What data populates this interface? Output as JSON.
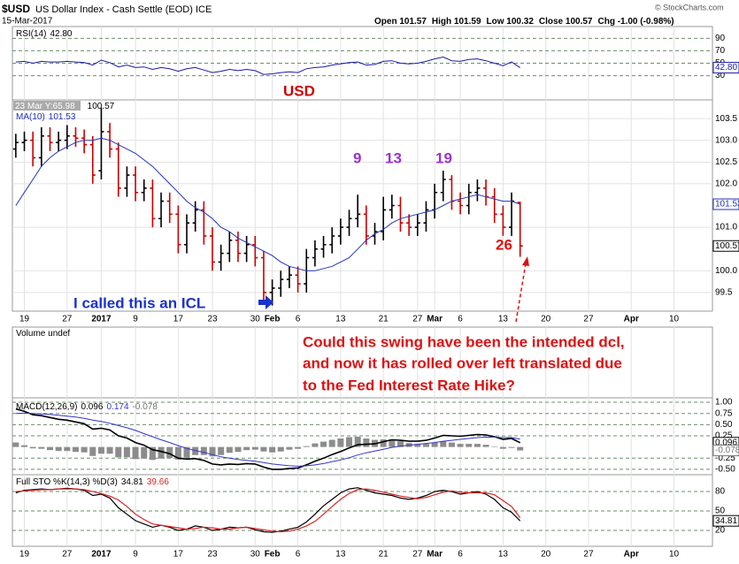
{
  "header": {
    "symbol": "$USD",
    "name": "US Dollar Index - Cash Settle (EOD) ICE",
    "date": "15-Mar-2017",
    "quote": [
      "Open 101.57",
      "High 101.59",
      "Low 100.32",
      "Close 100.57",
      "Chg -1.00 (-0.98%)"
    ],
    "source": "© StockCharts.com"
  },
  "chart_data": [
    {
      "type": "line",
      "title": "RSI(14)",
      "series": [
        {
          "color": "#1a1aa6",
          "values": [
            52,
            53,
            50,
            53,
            52,
            52,
            53,
            52,
            51,
            47,
            55,
            51,
            44,
            47,
            43,
            44,
            40,
            43,
            41,
            37,
            41,
            43,
            39,
            35,
            37,
            40,
            38,
            40,
            38,
            32,
            33,
            35,
            36,
            35,
            41,
            43,
            44,
            47,
            49,
            51,
            52,
            47,
            48,
            53,
            54,
            50,
            49,
            50,
            53,
            57,
            60,
            54,
            53,
            56,
            57,
            54,
            50,
            46,
            52,
            42.8
          ],
          "value_labels": [
            null,
            null,
            null,
            null,
            null,
            null,
            null,
            null,
            null,
            null,
            null,
            null,
            null,
            null,
            null,
            null,
            null,
            null,
            null,
            null,
            null,
            null,
            null,
            null,
            null,
            null,
            null,
            null,
            null,
            null,
            null,
            null,
            null,
            null,
            null,
            null,
            null,
            null,
            null,
            null,
            null,
            null,
            null,
            null,
            null,
            null,
            null,
            null,
            null,
            null,
            null,
            null,
            null,
            null,
            null,
            null,
            null,
            null,
            null,
            "42.80"
          ]
        }
      ],
      "ylim": [
        -9,
        109
      ],
      "yticks": [
        90,
        70,
        50,
        30
      ]
    },
    {
      "type": "ohlc",
      "annotations": [
        "USD",
        "9",
        "13",
        "19",
        "26",
        "I called this an ICL"
      ],
      "tooltip": "23 Mar Y:65.98",
      "up_color": "#000000",
      "down_color": "#cc0000",
      "open": [
        102.8,
        102.95,
        103.0,
        102.6,
        103.1,
        102.95,
        103.0,
        103.1,
        103.05,
        102.9,
        102.3,
        103.2,
        102.8,
        101.9,
        102.2,
        101.8,
        101.9,
        101.2,
        101.6,
        101.3,
        100.6,
        101.1,
        101.4,
        100.8,
        100.2,
        100.4,
        100.7,
        100.4,
        100.6,
        100.3,
        99.5,
        99.6,
        99.8,
        99.9,
        99.7,
        100.3,
        100.5,
        100.6,
        100.8,
        101.0,
        101.2,
        101.3,
        100.8,
        100.9,
        101.4,
        101.5,
        101.1,
        101.0,
        101.1,
        101.4,
        101.8,
        102.1,
        101.6,
        101.5,
        101.8,
        101.9,
        101.7,
        101.3,
        101.0,
        101.57
      ],
      "high": [
        103.15,
        103.2,
        103.2,
        103.3,
        103.3,
        103.2,
        103.35,
        103.3,
        103.25,
        103.1,
        103.75,
        103.4,
        102.95,
        102.4,
        102.4,
        102.1,
        102.1,
        101.8,
        101.8,
        101.5,
        101.3,
        101.6,
        101.6,
        101.0,
        100.6,
        100.9,
        100.9,
        100.8,
        100.8,
        100.45,
        99.8,
        100.0,
        100.1,
        100.1,
        100.5,
        100.7,
        100.8,
        101.0,
        101.2,
        101.4,
        101.75,
        101.5,
        101.1,
        101.7,
        101.75,
        101.7,
        101.3,
        101.3,
        101.6,
        102.0,
        102.3,
        102.2,
        101.8,
        102.0,
        102.1,
        102.1,
        101.9,
        101.5,
        101.8,
        101.59
      ],
      "low": [
        102.6,
        102.75,
        102.4,
        102.4,
        102.75,
        102.75,
        102.8,
        102.85,
        102.7,
        102.0,
        102.1,
        102.6,
        101.7,
        101.7,
        101.6,
        101.6,
        101.0,
        101.0,
        101.1,
        100.4,
        100.4,
        100.9,
        100.6,
        100.0,
        100.0,
        100.2,
        100.2,
        100.2,
        100.1,
        99.3,
        99.2,
        99.4,
        99.6,
        99.5,
        99.5,
        100.1,
        100.3,
        100.4,
        100.6,
        100.8,
        101.0,
        100.6,
        100.6,
        100.7,
        101.2,
        100.9,
        100.8,
        100.8,
        100.9,
        101.2,
        101.6,
        101.4,
        101.3,
        101.3,
        101.6,
        101.5,
        101.1,
        100.8,
        100.8,
        100.32
      ],
      "close": [
        102.95,
        103.0,
        102.6,
        103.1,
        102.95,
        103.0,
        103.1,
        103.05,
        102.9,
        102.2,
        103.2,
        102.8,
        101.9,
        102.2,
        101.8,
        101.9,
        101.2,
        101.6,
        101.3,
        100.6,
        101.1,
        101.4,
        100.8,
        100.2,
        100.4,
        100.7,
        100.4,
        100.6,
        100.3,
        99.5,
        99.6,
        99.8,
        99.9,
        99.7,
        100.3,
        100.5,
        100.6,
        100.8,
        101.0,
        101.2,
        101.3,
        100.8,
        100.9,
        101.4,
        101.5,
        101.1,
        101.0,
        101.1,
        101.4,
        101.8,
        102.1,
        101.6,
        101.5,
        101.8,
        101.9,
        101.7,
        101.3,
        101.0,
        101.6,
        100.57
      ],
      "series": [
        {
          "name": "MA(10)",
          "color": "#2233bb",
          "values": [
            101.5,
            101.8,
            102.1,
            102.4,
            102.6,
            102.75,
            102.85,
            102.95,
            103.0,
            103.0,
            103.05,
            103.0,
            102.9,
            102.8,
            102.7,
            102.55,
            102.4,
            102.2,
            102.0,
            101.8,
            101.6,
            101.45,
            101.35,
            101.2,
            101.0,
            100.9,
            100.75,
            100.65,
            100.55,
            100.45,
            100.35,
            100.2,
            100.1,
            100.05,
            100.0,
            100.0,
            100.05,
            100.1,
            100.2,
            100.3,
            100.5,
            100.7,
            100.85,
            100.95,
            101.1,
            101.2,
            101.25,
            101.3,
            101.35,
            101.4,
            101.5,
            101.6,
            101.65,
            101.7,
            101.75,
            101.7,
            101.65,
            101.6,
            101.6,
            101.53
          ]
        }
      ],
      "xlim": [
        -0.4,
        81.5
      ],
      "xticks": [
        {
          "value": 1,
          "label": "19"
        },
        {
          "value": 6,
          "label": "27"
        },
        {
          "value": 10,
          "label": "2017"
        },
        {
          "value": 14,
          "label": "9"
        },
        {
          "value": 19,
          "label": "17"
        },
        {
          "value": 23,
          "label": "23"
        },
        {
          "value": 28,
          "label": "30"
        },
        {
          "value": 30,
          "label": "Feb"
        },
        {
          "value": 33,
          "label": "6"
        },
        {
          "value": 38,
          "label": "13"
        },
        {
          "value": 43,
          "label": "21"
        },
        {
          "value": 47,
          "label": "27"
        },
        {
          "value": 49,
          "label": "Mar"
        },
        {
          "value": 52,
          "label": "6"
        },
        {
          "value": 57,
          "label": "13"
        },
        {
          "value": 62,
          "label": "20"
        },
        {
          "value": 67,
          "label": "27"
        },
        {
          "value": 72,
          "label": "Apr"
        },
        {
          "value": 77,
          "label": "10"
        }
      ],
      "ylim": [
        99.07,
        103.93
      ],
      "yticks": [
        103.5,
        {
          "value": 103,
          "label": "103.0"
        },
        102.5,
        {
          "value": 102,
          "label": "102.0"
        },
        {
          "value": 101,
          "label": "101.0"
        },
        {
          "value": 100,
          "label": "100.0"
        },
        99.5
      ]
    },
    {
      "type": "volume",
      "title": "Volume undef",
      "annotation": [
        "Could this swing have been the intended dcl,",
        "and now it has rolled over left translated due",
        "to the Fed Interest Rate Hike?"
      ]
    },
    {
      "type": "macd",
      "title": "MACD(12,26,9)",
      "lines": [
        {
          "color": "#000000",
          "values": [
            0.85,
            0.8,
            0.72,
            0.7,
            0.66,
            0.62,
            0.6,
            0.56,
            0.52,
            0.4,
            0.42,
            0.38,
            0.25,
            0.2,
            0.1,
            0.04,
            -0.06,
            -0.1,
            -0.15,
            -0.25,
            -0.27,
            -0.26,
            -0.3,
            -0.38,
            -0.4,
            -0.38,
            -0.39,
            -0.37,
            -0.38,
            -0.45,
            -0.5,
            -0.5,
            -0.48,
            -0.47,
            -0.4,
            -0.32,
            -0.25,
            -0.17,
            -0.1,
            -0.02,
            0.05,
            0.06,
            0.07,
            0.12,
            0.16,
            0.15,
            0.13,
            0.13,
            0.15,
            0.2,
            0.26,
            0.25,
            0.24,
            0.26,
            0.28,
            0.27,
            0.23,
            0.17,
            0.19,
            0.096
          ]
        },
        {
          "color": "#3333cc",
          "values": [
            0.75,
            0.76,
            0.75,
            0.74,
            0.73,
            0.71,
            0.69,
            0.67,
            0.64,
            0.6,
            0.57,
            0.53,
            0.48,
            0.43,
            0.37,
            0.3,
            0.23,
            0.16,
            0.1,
            0.03,
            -0.03,
            -0.08,
            -0.12,
            -0.17,
            -0.22,
            -0.25,
            -0.28,
            -0.3,
            -0.32,
            -0.35,
            -0.38,
            -0.4,
            -0.42,
            -0.43,
            -0.42,
            -0.4,
            -0.37,
            -0.33,
            -0.29,
            -0.24,
            -0.18,
            -0.13,
            -0.09,
            -0.05,
            -0.01,
            0.02,
            0.04,
            0.06,
            0.08,
            0.1,
            0.13,
            0.15,
            0.17,
            0.19,
            0.21,
            0.22,
            0.22,
            0.21,
            0.21,
            0.174
          ]
        }
      ],
      "histogram": {
        "color": "#8c8c8c",
        "values": [
          0.1,
          0.04,
          -0.03,
          -0.04,
          -0.07,
          -0.09,
          -0.09,
          -0.11,
          -0.12,
          -0.2,
          -0.15,
          -0.15,
          -0.23,
          -0.23,
          -0.27,
          -0.26,
          -0.29,
          -0.26,
          -0.25,
          -0.28,
          -0.24,
          -0.18,
          -0.18,
          -0.21,
          -0.18,
          -0.13,
          -0.11,
          -0.07,
          -0.06,
          -0.1,
          -0.12,
          -0.1,
          -0.06,
          -0.04,
          0.02,
          0.08,
          0.12,
          0.16,
          0.19,
          0.22,
          0.23,
          0.19,
          0.16,
          0.17,
          0.17,
          0.13,
          0.09,
          0.07,
          0.07,
          0.1,
          0.13,
          0.1,
          0.07,
          0.07,
          0.07,
          0.05,
          0.01,
          -0.04,
          -0.02,
          -0.078
        ]
      },
      "ylim": [
        -0.62,
        1.1
      ],
      "yticks": [
        {
          "value": 1,
          "label": "1.00"
        },
        0.75,
        {
          "value": 0.5,
          "label": "0.50"
        },
        0.25,
        -0.25,
        {
          "value": -0.5,
          "label": "-0.50"
        }
      ]
    },
    {
      "type": "stochastic",
      "title": "Full STO %K(14,3) %D(3)",
      "lines": [
        {
          "color": "#000000",
          "values": [
            78,
            82,
            83,
            84,
            83,
            84,
            85,
            84,
            82,
            74,
            76,
            70,
            55,
            45,
            35,
            30,
            25,
            28,
            25,
            20,
            22,
            27,
            25,
            20,
            22,
            25,
            24,
            25,
            21,
            18,
            17,
            19,
            22,
            25,
            33,
            45,
            58,
            68,
            78,
            84,
            86,
            82,
            78,
            76,
            74,
            70,
            68,
            70,
            74,
            80,
            82,
            80,
            76,
            78,
            80,
            76,
            68,
            55,
            48,
            34.81
          ]
        },
        {
          "color": "#dd2222",
          "values": [
            80,
            81,
            82,
            83,
            83,
            84,
            84,
            84,
            83,
            80,
            77,
            73,
            67,
            57,
            45,
            37,
            30,
            28,
            26,
            24,
            22,
            23,
            25,
            24,
            22,
            22,
            24,
            25,
            23,
            21,
            19,
            18,
            19,
            22,
            27,
            34,
            45,
            57,
            68,
            77,
            83,
            84,
            82,
            79,
            76,
            73,
            71,
            69,
            71,
            75,
            79,
            81,
            79,
            78,
            78,
            78,
            75,
            66,
            57,
            39.66
          ]
        }
      ],
      "ylim": [
        -4.5,
        106
      ],
      "yticks": [
        80,
        50,
        20
      ]
    }
  ]
}
